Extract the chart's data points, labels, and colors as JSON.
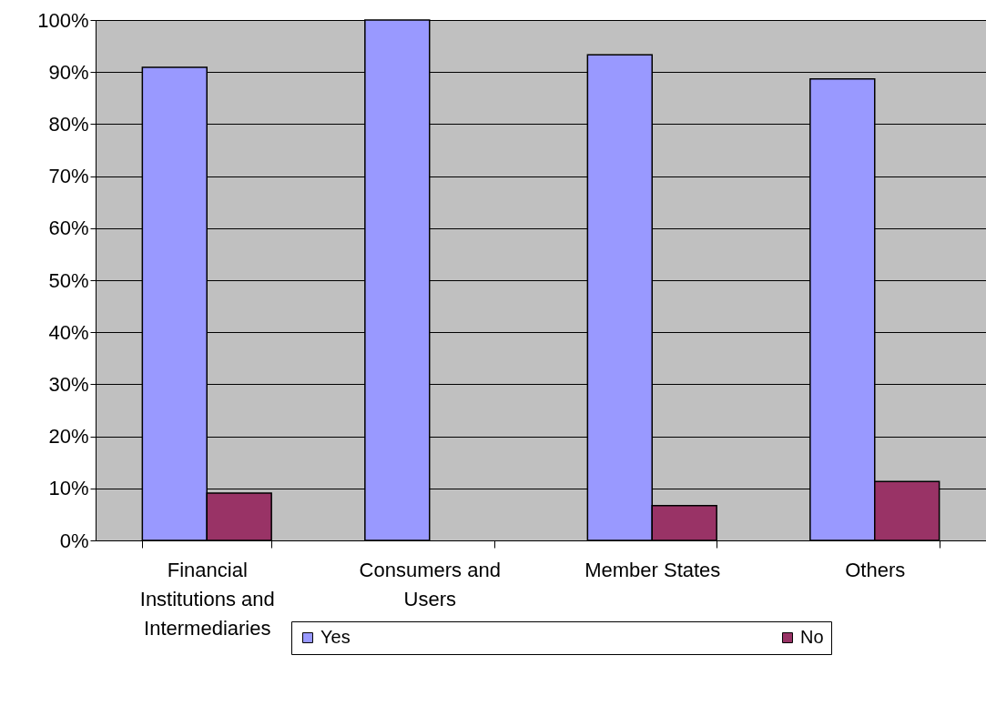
{
  "chart_data": {
    "type": "bar",
    "categories": [
      "Financial Institutions and Intermediaries",
      "Consumers and Users",
      "Member States",
      "Others"
    ],
    "series": [
      {
        "name": "Yes",
        "color": "#9999ff",
        "values": [
          90.9,
          100,
          93.3,
          88.7
        ]
      },
      {
        "name": "No",
        "color": "#993366",
        "values": [
          9.1,
          null,
          6.7,
          11.3
        ]
      }
    ],
    "ylim": [
      0,
      100
    ],
    "yticks": [
      {
        "value": 0,
        "label": "0%"
      },
      {
        "value": 10,
        "label": "10%"
      },
      {
        "value": 20,
        "label": "20%"
      },
      {
        "value": 30,
        "label": "30%"
      },
      {
        "value": 40,
        "label": "40%"
      },
      {
        "value": 50,
        "label": "50%"
      },
      {
        "value": 60,
        "label": "60%"
      },
      {
        "value": 70,
        "label": "70%"
      },
      {
        "value": 80,
        "label": "80%"
      },
      {
        "value": 90,
        "label": "90%"
      },
      {
        "value": 100,
        "label": "100%"
      }
    ],
    "grid": "y",
    "legend": "bottom"
  }
}
